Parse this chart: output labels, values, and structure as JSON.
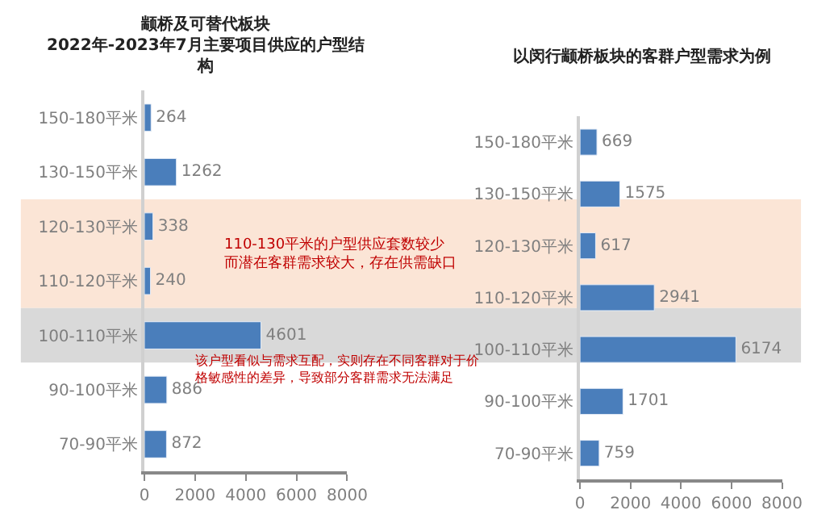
{
  "chart_data": [
    {
      "type": "bar",
      "orientation": "horizontal",
      "title": "颛桥及可替代板块\n2022年-2023年7月主要项目供应的户型结构",
      "categories": [
        "150-180平米",
        "130-150平米",
        "120-130平米",
        "110-120平米",
        "100-110平米",
        "90-100平米",
        "70-90平米"
      ],
      "values": [
        264,
        1262,
        338,
        240,
        4601,
        886,
        872
      ],
      "color": "#4a7ebb",
      "data_labels": true,
      "xlim": [
        0,
        8000
      ],
      "xticks": [
        0,
        2000,
        4000,
        6000,
        8000
      ],
      "grid": false,
      "legend": false,
      "bands": [
        {
          "axis": "y",
          "from": "120-130平米",
          "to": "110-120平米",
          "color": "#fbe5d6"
        },
        {
          "axis": "y",
          "from": "100-110平米",
          "to": "100-110平米",
          "color": "#d9d9d9"
        }
      ],
      "annotations": [
        "110-130平米的户型供应套数较少而潜在客群需求较大，存在供需缺口",
        "该户型看似与需求互配，实则存在不同客群对于价格敏感性的差异，导致部分客群需求无法满足"
      ]
    },
    {
      "type": "bar",
      "orientation": "horizontal",
      "title": "以闵行颛桥板块的客群户型需求为例",
      "categories": [
        "150-180平米",
        "130-150平米",
        "120-130平米",
        "110-120平米",
        "100-110平米",
        "90-100平米",
        "70-90平米"
      ],
      "values": [
        669,
        1575,
        617,
        2941,
        6174,
        1701,
        759
      ],
      "color": "#4a7ebb",
      "data_labels": true,
      "xlim": [
        0,
        8000
      ],
      "xticks": [
        0,
        2000,
        4000,
        6000,
        8000
      ],
      "grid": false,
      "legend": false
    }
  ]
}
